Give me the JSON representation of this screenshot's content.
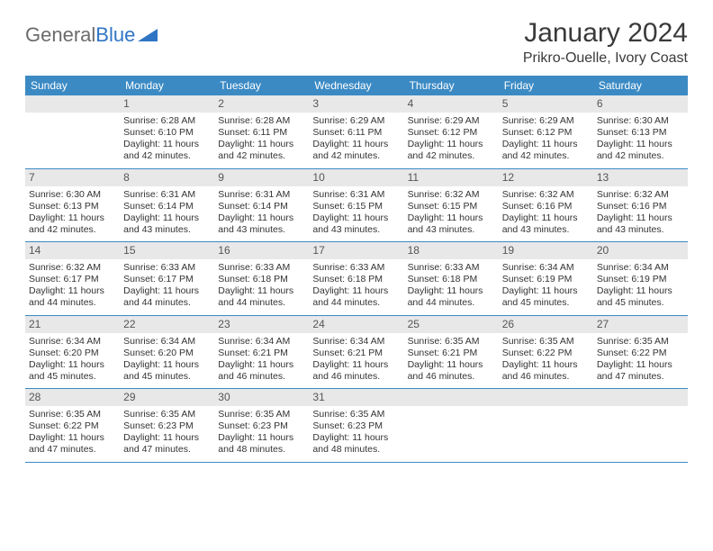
{
  "logo": {
    "text_gray": "General",
    "text_blue": "Blue"
  },
  "title": "January 2024",
  "location": "Prikro-Ouelle, Ivory Coast",
  "colors": {
    "header_bg": "#3b8ac4",
    "header_text": "#ffffff",
    "daynum_bg": "#e8e8e8",
    "week_border": "#3b8ac4",
    "body_text": "#333333"
  },
  "day_names": [
    "Sunday",
    "Monday",
    "Tuesday",
    "Wednesday",
    "Thursday",
    "Friday",
    "Saturday"
  ],
  "weeks": [
    [
      {
        "n": "",
        "lines": []
      },
      {
        "n": "1",
        "lines": [
          "Sunrise: 6:28 AM",
          "Sunset: 6:10 PM",
          "Daylight: 11 hours",
          "and 42 minutes."
        ]
      },
      {
        "n": "2",
        "lines": [
          "Sunrise: 6:28 AM",
          "Sunset: 6:11 PM",
          "Daylight: 11 hours",
          "and 42 minutes."
        ]
      },
      {
        "n": "3",
        "lines": [
          "Sunrise: 6:29 AM",
          "Sunset: 6:11 PM",
          "Daylight: 11 hours",
          "and 42 minutes."
        ]
      },
      {
        "n": "4",
        "lines": [
          "Sunrise: 6:29 AM",
          "Sunset: 6:12 PM",
          "Daylight: 11 hours",
          "and 42 minutes."
        ]
      },
      {
        "n": "5",
        "lines": [
          "Sunrise: 6:29 AM",
          "Sunset: 6:12 PM",
          "Daylight: 11 hours",
          "and 42 minutes."
        ]
      },
      {
        "n": "6",
        "lines": [
          "Sunrise: 6:30 AM",
          "Sunset: 6:13 PM",
          "Daylight: 11 hours",
          "and 42 minutes."
        ]
      }
    ],
    [
      {
        "n": "7",
        "lines": [
          "Sunrise: 6:30 AM",
          "Sunset: 6:13 PM",
          "Daylight: 11 hours",
          "and 42 minutes."
        ]
      },
      {
        "n": "8",
        "lines": [
          "Sunrise: 6:31 AM",
          "Sunset: 6:14 PM",
          "Daylight: 11 hours",
          "and 43 minutes."
        ]
      },
      {
        "n": "9",
        "lines": [
          "Sunrise: 6:31 AM",
          "Sunset: 6:14 PM",
          "Daylight: 11 hours",
          "and 43 minutes."
        ]
      },
      {
        "n": "10",
        "lines": [
          "Sunrise: 6:31 AM",
          "Sunset: 6:15 PM",
          "Daylight: 11 hours",
          "and 43 minutes."
        ]
      },
      {
        "n": "11",
        "lines": [
          "Sunrise: 6:32 AM",
          "Sunset: 6:15 PM",
          "Daylight: 11 hours",
          "and 43 minutes."
        ]
      },
      {
        "n": "12",
        "lines": [
          "Sunrise: 6:32 AM",
          "Sunset: 6:16 PM",
          "Daylight: 11 hours",
          "and 43 minutes."
        ]
      },
      {
        "n": "13",
        "lines": [
          "Sunrise: 6:32 AM",
          "Sunset: 6:16 PM",
          "Daylight: 11 hours",
          "and 43 minutes."
        ]
      }
    ],
    [
      {
        "n": "14",
        "lines": [
          "Sunrise: 6:32 AM",
          "Sunset: 6:17 PM",
          "Daylight: 11 hours",
          "and 44 minutes."
        ]
      },
      {
        "n": "15",
        "lines": [
          "Sunrise: 6:33 AM",
          "Sunset: 6:17 PM",
          "Daylight: 11 hours",
          "and 44 minutes."
        ]
      },
      {
        "n": "16",
        "lines": [
          "Sunrise: 6:33 AM",
          "Sunset: 6:18 PM",
          "Daylight: 11 hours",
          "and 44 minutes."
        ]
      },
      {
        "n": "17",
        "lines": [
          "Sunrise: 6:33 AM",
          "Sunset: 6:18 PM",
          "Daylight: 11 hours",
          "and 44 minutes."
        ]
      },
      {
        "n": "18",
        "lines": [
          "Sunrise: 6:33 AM",
          "Sunset: 6:18 PM",
          "Daylight: 11 hours",
          "and 44 minutes."
        ]
      },
      {
        "n": "19",
        "lines": [
          "Sunrise: 6:34 AM",
          "Sunset: 6:19 PM",
          "Daylight: 11 hours",
          "and 45 minutes."
        ]
      },
      {
        "n": "20",
        "lines": [
          "Sunrise: 6:34 AM",
          "Sunset: 6:19 PM",
          "Daylight: 11 hours",
          "and 45 minutes."
        ]
      }
    ],
    [
      {
        "n": "21",
        "lines": [
          "Sunrise: 6:34 AM",
          "Sunset: 6:20 PM",
          "Daylight: 11 hours",
          "and 45 minutes."
        ]
      },
      {
        "n": "22",
        "lines": [
          "Sunrise: 6:34 AM",
          "Sunset: 6:20 PM",
          "Daylight: 11 hours",
          "and 45 minutes."
        ]
      },
      {
        "n": "23",
        "lines": [
          "Sunrise: 6:34 AM",
          "Sunset: 6:21 PM",
          "Daylight: 11 hours",
          "and 46 minutes."
        ]
      },
      {
        "n": "24",
        "lines": [
          "Sunrise: 6:34 AM",
          "Sunset: 6:21 PM",
          "Daylight: 11 hours",
          "and 46 minutes."
        ]
      },
      {
        "n": "25",
        "lines": [
          "Sunrise: 6:35 AM",
          "Sunset: 6:21 PM",
          "Daylight: 11 hours",
          "and 46 minutes."
        ]
      },
      {
        "n": "26",
        "lines": [
          "Sunrise: 6:35 AM",
          "Sunset: 6:22 PM",
          "Daylight: 11 hours",
          "and 46 minutes."
        ]
      },
      {
        "n": "27",
        "lines": [
          "Sunrise: 6:35 AM",
          "Sunset: 6:22 PM",
          "Daylight: 11 hours",
          "and 47 minutes."
        ]
      }
    ],
    [
      {
        "n": "28",
        "lines": [
          "Sunrise: 6:35 AM",
          "Sunset: 6:22 PM",
          "Daylight: 11 hours",
          "and 47 minutes."
        ]
      },
      {
        "n": "29",
        "lines": [
          "Sunrise: 6:35 AM",
          "Sunset: 6:23 PM",
          "Daylight: 11 hours",
          "and 47 minutes."
        ]
      },
      {
        "n": "30",
        "lines": [
          "Sunrise: 6:35 AM",
          "Sunset: 6:23 PM",
          "Daylight: 11 hours",
          "and 48 minutes."
        ]
      },
      {
        "n": "31",
        "lines": [
          "Sunrise: 6:35 AM",
          "Sunset: 6:23 PM",
          "Daylight: 11 hours",
          "and 48 minutes."
        ]
      },
      {
        "n": "",
        "lines": []
      },
      {
        "n": "",
        "lines": []
      },
      {
        "n": "",
        "lines": []
      }
    ]
  ]
}
